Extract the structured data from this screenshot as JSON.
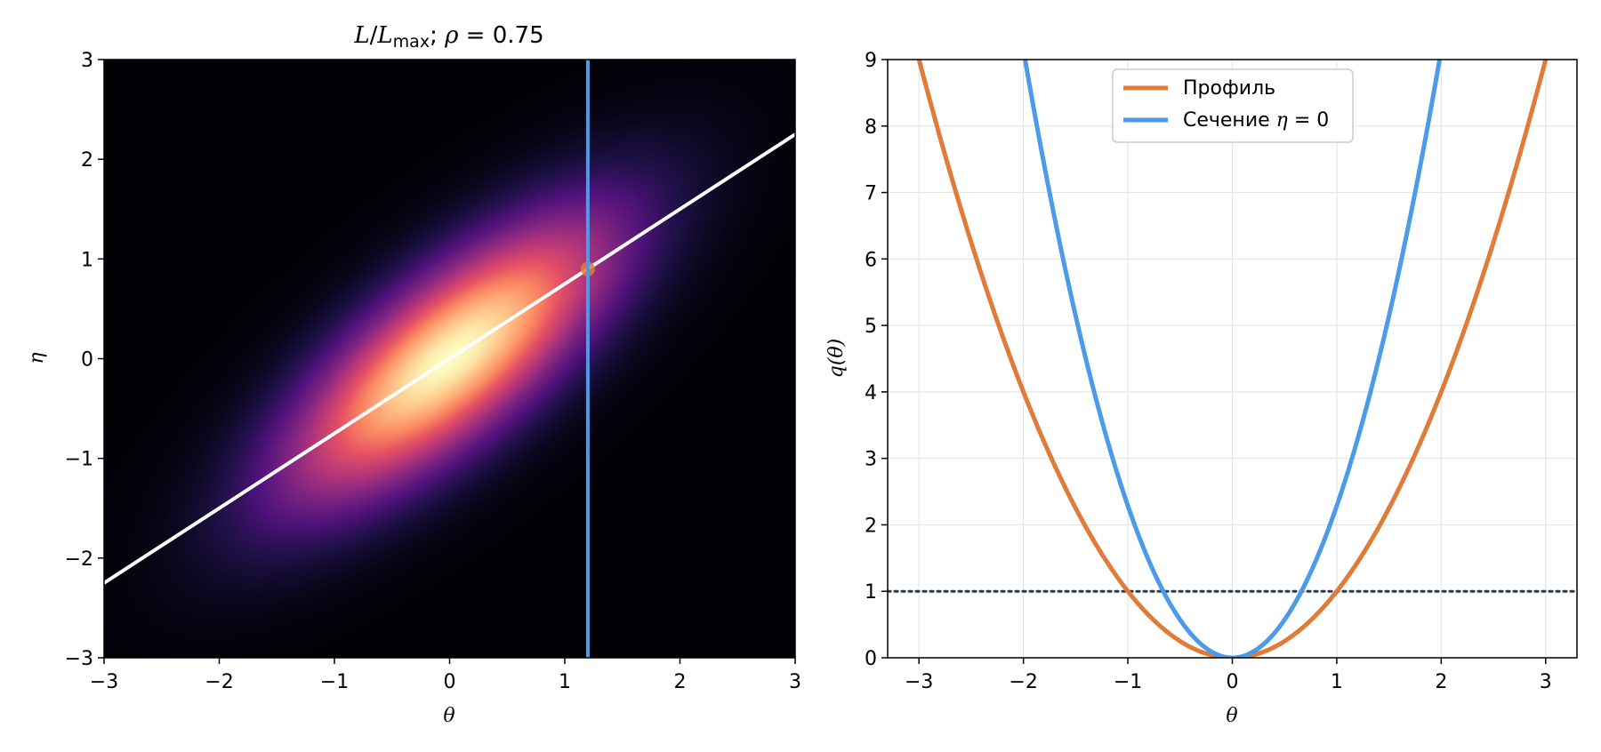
{
  "chart_data": [
    {
      "type": "heatmap",
      "title": "L/L_max ; ρ = 0.75",
      "title_parts": {
        "L1": "L",
        "slash": "/",
        "L2": "L",
        "sub": "max",
        "semi": "; ",
        "rho": "ρ",
        "eq": " = 0.75"
      },
      "rho": 0.75,
      "xlabel": "θ",
      "ylabel": "η",
      "xlim": [
        -3,
        3
      ],
      "ylim": [
        -3,
        3
      ],
      "xticks": [
        -3,
        -2,
        -1,
        0,
        1,
        2,
        3
      ],
      "yticks": [
        -3,
        -2,
        -1,
        0,
        1,
        2,
        3
      ],
      "tick_labels": [
        "−3",
        "−2",
        "−1",
        "0",
        "1",
        "2",
        "3"
      ],
      "colormap": "magma",
      "field": "exp(-(θ² - 2ρθη + η²) / (2(1-ρ²)))",
      "overlays": [
        {
          "kind": "line",
          "name": "profile-path",
          "x": [
            -3,
            3
          ],
          "y": [
            -2.25,
            2.25
          ],
          "color": "#ffffff"
        },
        {
          "kind": "vline",
          "name": "slice",
          "x": 1.2,
          "color": "#4c9be8"
        },
        {
          "kind": "point",
          "name": "marker",
          "x": 1.2,
          "y": 0.9,
          "color": "#e07b39"
        }
      ],
      "grid": false
    },
    {
      "type": "line",
      "xlabel": "θ",
      "ylabel": "q(θ)",
      "xlim": [
        -3.3,
        3.3
      ],
      "ylim": [
        0,
        9
      ],
      "xticks": [
        -3,
        -2,
        -1,
        0,
        1,
        2,
        3
      ],
      "xtick_labels": [
        "−3",
        "−2",
        "−1",
        "0",
        "1",
        "2",
        "3"
      ],
      "yticks": [
        0,
        1,
        2,
        3,
        4,
        5,
        6,
        7,
        8,
        9
      ],
      "ytick_labels": [
        "0",
        "1",
        "2",
        "3",
        "4",
        "5",
        "6",
        "7",
        "8",
        "9"
      ],
      "grid": true,
      "legend_position": "top-center",
      "series": [
        {
          "name": "Профиль",
          "color": "#e07b39",
          "formula": "q = θ²",
          "x": [
            -3,
            -2.5,
            -2,
            -1.5,
            -1,
            -0.5,
            0,
            0.5,
            1,
            1.5,
            2,
            2.5,
            3
          ],
          "y": [
            9,
            6.25,
            4,
            2.25,
            1,
            0.25,
            0,
            0.25,
            1,
            2.25,
            4,
            6.25,
            9
          ]
        },
        {
          "name": "Сечение η = 0",
          "name_prefix": "Сечение ",
          "name_var": "η",
          "name_suffix": " = 0",
          "color": "#4c9be8",
          "formula": "q = θ²/(1-ρ²)",
          "x": [
            -1.984,
            -1.5,
            -1,
            -0.5,
            0,
            0.5,
            1,
            1.5,
            1.984
          ],
          "y": [
            9,
            5.14,
            2.29,
            0.57,
            0,
            0.57,
            2.29,
            5.14,
            9
          ]
        }
      ],
      "hlines": [
        {
          "y": 1,
          "style": "dotted",
          "color": "#2b3a4a"
        }
      ]
    }
  ]
}
